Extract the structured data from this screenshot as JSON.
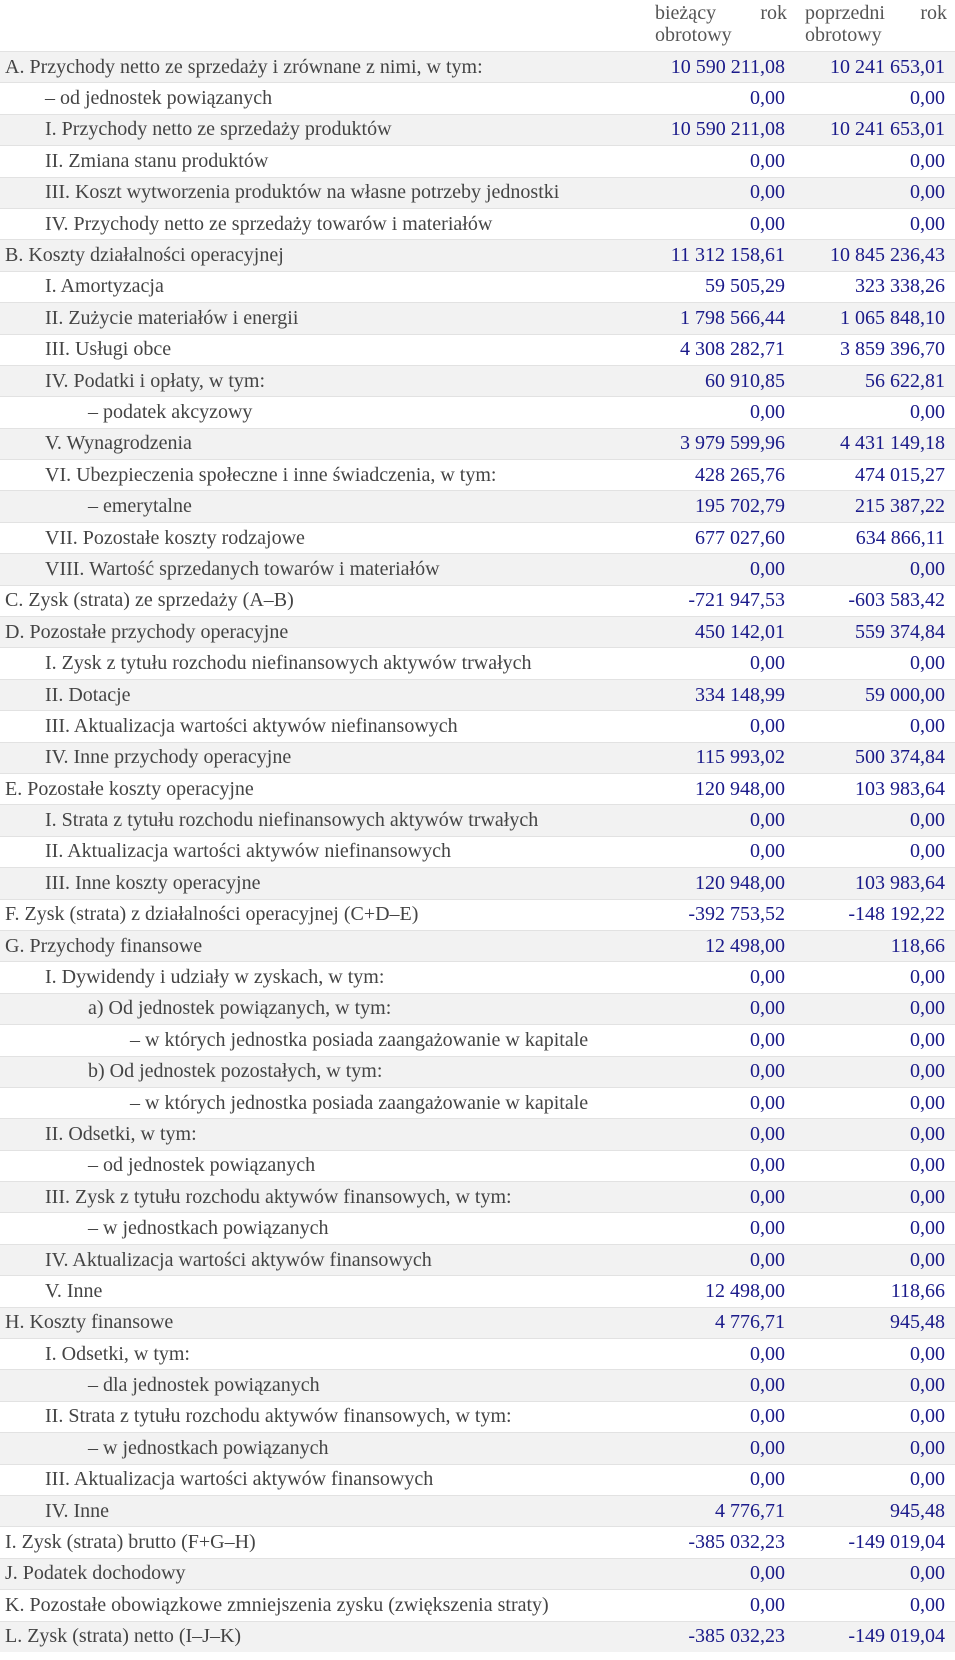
{
  "header": {
    "current": "bieżący rok obrotowy",
    "previous": "poprzedni rok obrotowy"
  },
  "colors": {
    "value": "#1a1a8a",
    "label": "#444444",
    "stripe": "#f2f2f2"
  },
  "rows": [
    {
      "label": "A. Przychody netto ze sprzedaży i zrównane z nimi, w tym:",
      "level": 0,
      "current": "10 590 211,08",
      "previous": "10 241 653,01"
    },
    {
      "label": "– od jednostek powiązanych",
      "level": 1,
      "current": "0,00",
      "previous": "0,00"
    },
    {
      "label": "I. Przychody netto ze sprzedaży produktów",
      "level": 1,
      "current": "10 590 211,08",
      "previous": "10 241 653,01"
    },
    {
      "label": "II. Zmiana stanu produktów",
      "level": 1,
      "current": "0,00",
      "previous": "0,00"
    },
    {
      "label": "III. Koszt wytworzenia produktów na własne potrzeby jednostki",
      "level": 1,
      "current": "0,00",
      "previous": "0,00"
    },
    {
      "label": "IV. Przychody netto ze sprzedaży towarów i materiałów",
      "level": 1,
      "current": "0,00",
      "previous": "0,00"
    },
    {
      "label": "B. Koszty działalności operacyjnej",
      "level": 0,
      "current": "11 312 158,61",
      "previous": "10 845 236,43"
    },
    {
      "label": "I. Amortyzacja",
      "level": 1,
      "current": "59 505,29",
      "previous": "323 338,26"
    },
    {
      "label": "II. Zużycie materiałów i energii",
      "level": 1,
      "current": "1 798 566,44",
      "previous": "1 065 848,10"
    },
    {
      "label": "III. Usługi obce",
      "level": 1,
      "current": "4 308 282,71",
      "previous": "3 859 396,70"
    },
    {
      "label": "IV. Podatki i opłaty, w tym:",
      "level": 1,
      "current": "60 910,85",
      "previous": "56 622,81"
    },
    {
      "label": "– podatek akcyzowy",
      "level": 2,
      "current": "0,00",
      "previous": "0,00"
    },
    {
      "label": "V. Wynagrodzenia",
      "level": 1,
      "current": "3 979 599,96",
      "previous": "4 431 149,18"
    },
    {
      "label": "VI. Ubezpieczenia społeczne i inne świadczenia, w tym:",
      "level": 1,
      "current": "428 265,76",
      "previous": "474 015,27"
    },
    {
      "label": "– emerytalne",
      "level": 2,
      "current": "195 702,79",
      "previous": "215 387,22"
    },
    {
      "label": "VII. Pozostałe koszty rodzajowe",
      "level": 1,
      "current": "677 027,60",
      "previous": "634 866,11"
    },
    {
      "label": "VIII. Wartość sprzedanych towarów i materiałów",
      "level": 1,
      "current": "0,00",
      "previous": "0,00"
    },
    {
      "label": "C. Zysk (strata) ze sprzedaży (A–B)",
      "level": 0,
      "current": "-721 947,53",
      "previous": "-603 583,42"
    },
    {
      "label": "D. Pozostałe przychody operacyjne",
      "level": 0,
      "current": "450 142,01",
      "previous": "559 374,84"
    },
    {
      "label": "I. Zysk z tytułu rozchodu niefinansowych aktywów trwałych",
      "level": 1,
      "current": "0,00",
      "previous": "0,00"
    },
    {
      "label": "II. Dotacje",
      "level": 1,
      "current": "334 148,99",
      "previous": "59 000,00"
    },
    {
      "label": "III. Aktualizacja wartości aktywów niefinansowych",
      "level": 1,
      "current": "0,00",
      "previous": "0,00"
    },
    {
      "label": "IV. Inne przychody operacyjne",
      "level": 1,
      "current": "115 993,02",
      "previous": "500 374,84"
    },
    {
      "label": "E. Pozostałe koszty operacyjne",
      "level": 0,
      "current": "120 948,00",
      "previous": "103 983,64"
    },
    {
      "label": "I. Strata z tytułu rozchodu niefinansowych aktywów trwałych",
      "level": 1,
      "current": "0,00",
      "previous": "0,00"
    },
    {
      "label": "II. Aktualizacja wartości aktywów niefinansowych",
      "level": 1,
      "current": "0,00",
      "previous": "0,00"
    },
    {
      "label": "III. Inne koszty operacyjne",
      "level": 1,
      "current": "120 948,00",
      "previous": "103 983,64"
    },
    {
      "label": "F. Zysk (strata) z działalności operacyjnej (C+D–E)",
      "level": 0,
      "current": "-392 753,52",
      "previous": "-148 192,22"
    },
    {
      "label": "G. Przychody finansowe",
      "level": 0,
      "current": "12 498,00",
      "previous": "118,66"
    },
    {
      "label": "I. Dywidendy i udziały w zyskach, w tym:",
      "level": 1,
      "current": "0,00",
      "previous": "0,00"
    },
    {
      "label": "a) Od jednostek powiązanych, w tym:",
      "level": 2,
      "current": "0,00",
      "previous": "0,00"
    },
    {
      "label": "– w których jednostka posiada zaangażowanie w kapitale",
      "level": 3,
      "current": "0,00",
      "previous": "0,00"
    },
    {
      "label": "b) Od jednostek pozostałych, w tym:",
      "level": 2,
      "current": "0,00",
      "previous": "0,00"
    },
    {
      "label": "– w których jednostka posiada zaangażowanie w kapitale",
      "level": 3,
      "current": "0,00",
      "previous": "0,00"
    },
    {
      "label": "II. Odsetki, w tym:",
      "level": 1,
      "current": "0,00",
      "previous": "0,00"
    },
    {
      "label": "– od jednostek powiązanych",
      "level": 2,
      "current": "0,00",
      "previous": "0,00"
    },
    {
      "label": "III. Zysk z tytułu rozchodu aktywów finansowych, w tym:",
      "level": 1,
      "current": "0,00",
      "previous": "0,00"
    },
    {
      "label": "– w jednostkach powiązanych",
      "level": 2,
      "current": "0,00",
      "previous": "0,00"
    },
    {
      "label": "IV. Aktualizacja wartości aktywów finansowych",
      "level": 1,
      "current": "0,00",
      "previous": "0,00"
    },
    {
      "label": "V. Inne",
      "level": 1,
      "current": "12 498,00",
      "previous": "118,66"
    },
    {
      "label": "H. Koszty finansowe",
      "level": 0,
      "current": "4 776,71",
      "previous": "945,48"
    },
    {
      "label": "I. Odsetki, w tym:",
      "level": 1,
      "current": "0,00",
      "previous": "0,00"
    },
    {
      "label": "– dla jednostek powiązanych",
      "level": 2,
      "current": "0,00",
      "previous": "0,00"
    },
    {
      "label": "II. Strata z tytułu rozchodu aktywów finansowych, w tym:",
      "level": 1,
      "current": "0,00",
      "previous": "0,00"
    },
    {
      "label": "– w jednostkach powiązanych",
      "level": 2,
      "current": "0,00",
      "previous": "0,00"
    },
    {
      "label": "III. Aktualizacja wartości aktywów finansowych",
      "level": 1,
      "current": "0,00",
      "previous": "0,00"
    },
    {
      "label": "IV. Inne",
      "level": 1,
      "current": "4 776,71",
      "previous": "945,48"
    },
    {
      "label": "I. Zysk (strata) brutto (F+G–H)",
      "level": 0,
      "current": "-385 032,23",
      "previous": "-149 019,04"
    },
    {
      "label": "J. Podatek dochodowy",
      "level": 0,
      "current": "0,00",
      "previous": "0,00"
    },
    {
      "label": "K. Pozostałe obowiązkowe zmniejszenia zysku (zwiększenia straty)",
      "level": 0,
      "current": "0,00",
      "previous": "0,00"
    },
    {
      "label": "L. Zysk (strata) netto (I–J–K)",
      "level": 0,
      "current": "-385 032,23",
      "previous": "-149 019,04"
    }
  ]
}
